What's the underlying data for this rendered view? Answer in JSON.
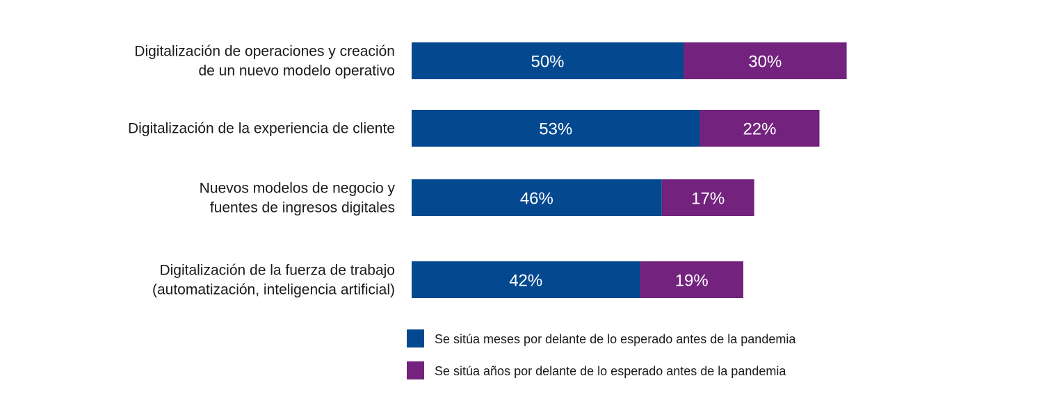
{
  "chart_data": {
    "type": "bar",
    "orientation": "horizontal",
    "stacked": true,
    "title": "",
    "xlabel": "",
    "ylabel": "",
    "xlim": [
      0,
      100
    ],
    "grid": false,
    "legend_position": "bottom",
    "categories": [
      [
        "Digitalización de operaciones y creación",
        "de un nuevo modelo operativo"
      ],
      [
        "Digitalización de la experiencia de cliente"
      ],
      [
        "Nuevos modelos de negocio y",
        "fuentes de ingresos digitales"
      ],
      [
        "Digitalización de la fuerza de trabajo",
        "(automatización, inteligencia artificial)"
      ]
    ],
    "series": [
      {
        "name": "Se sitúa meses por delante de lo esperado antes de la pandemia",
        "color": "#04498F",
        "values": [
          50,
          53,
          46,
          42
        ],
        "labels": [
          "50%",
          "53%",
          "46%",
          "42%"
        ]
      },
      {
        "name": "Se sitúa años por delante de lo esperado antes de la pandemia",
        "color": "#73227E",
        "values": [
          30,
          22,
          17,
          19
        ],
        "labels": [
          "30%",
          "22%",
          "17%",
          "19%"
        ]
      }
    ]
  }
}
